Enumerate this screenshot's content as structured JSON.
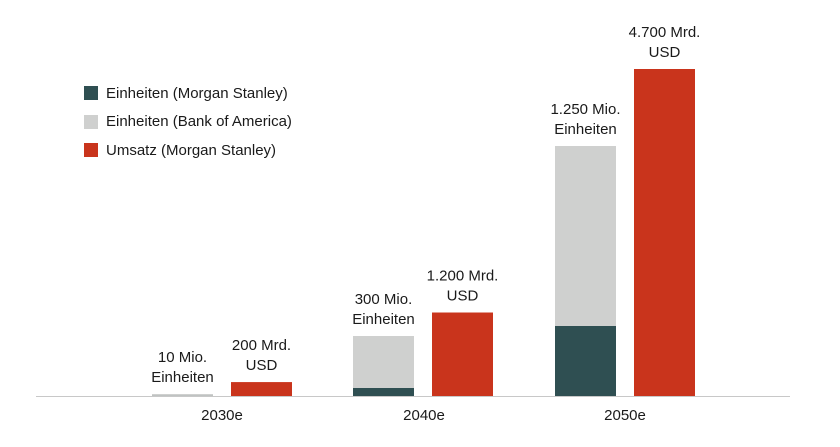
{
  "chart_data": {
    "type": "bar",
    "categories": [
      "2030e",
      "2040e",
      "2050e"
    ],
    "series": [
      {
        "name": "Einheiten (Morgan Stanley)",
        "color": "#2f4f52",
        "values": [
          0.5,
          40,
          350
        ],
        "unit": "Mio."
      },
      {
        "name": "Einheiten (Bank of America)",
        "color": "#cfd0cf",
        "values": [
          10,
          300,
          1250
        ],
        "unit": "Mio."
      },
      {
        "name": "Umsatz (Morgan Stanley)",
        "color": "#c9341c",
        "values": [
          200,
          1200,
          4700
        ],
        "unit": "Mrd. USD"
      }
    ],
    "annotations": {
      "units": [
        [
          "10 Mio.",
          "Einheiten"
        ],
        [
          "300 Mio.",
          "Einheiten"
        ],
        [
          "1.250 Mio.",
          "Einheiten"
        ]
      ],
      "revenue": [
        [
          "200 Mrd.",
          "USD"
        ],
        [
          "1.200 Mrd.",
          "USD"
        ],
        [
          "4.700 Mrd.",
          "USD"
        ]
      ]
    },
    "legend_position": "top-left",
    "grid": false
  }
}
